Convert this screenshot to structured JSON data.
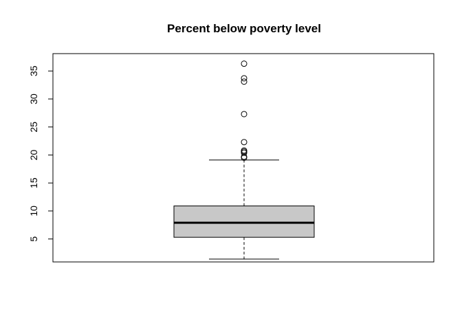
{
  "chart_data": {
    "type": "box",
    "title": "Percent below poverty level",
    "xlabel": "",
    "ylabel": "",
    "ylim": [
      0.9,
      38.1
    ],
    "yticks": [
      5,
      10,
      15,
      20,
      25,
      30,
      35
    ],
    "grid": false,
    "box": {
      "whisker_low": 1.4,
      "q1": 5.3,
      "median": 7.9,
      "q3": 10.9,
      "whisker_high": 19.1,
      "outliers": [
        19.5,
        19.7,
        20.4,
        20.6,
        20.8,
        22.3,
        27.3,
        33.1,
        33.7,
        36.3
      ]
    },
    "colors": {
      "box_fill": "#c8c8c8",
      "stroke": "#000000"
    }
  }
}
